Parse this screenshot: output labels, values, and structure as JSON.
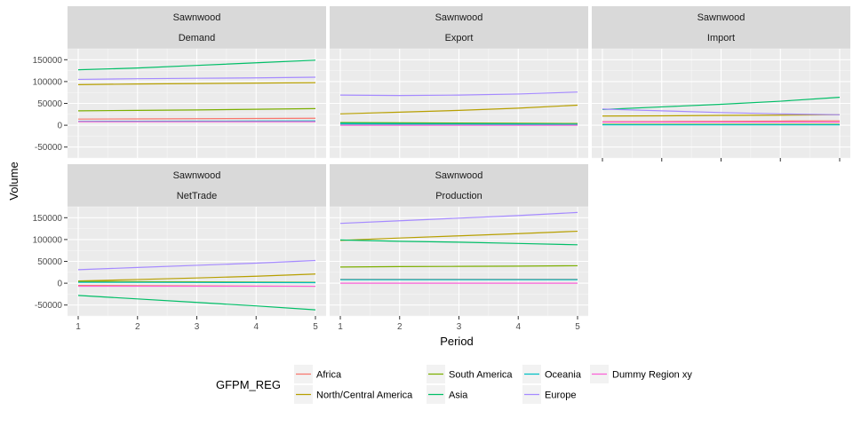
{
  "chart_data": {
    "type": "line",
    "facet_layout": "2 rows x 3 columns, free x labels on bottom panels",
    "xlabel": "Period",
    "ylabel": "Volume",
    "x": [
      1,
      2,
      3,
      4,
      5
    ],
    "x_ticks": [
      "1",
      "2",
      "3",
      "4",
      "5"
    ],
    "ylim": [
      -75000,
      175000
    ],
    "y_ticks": [
      "-50000",
      "0",
      "50000",
      "100000",
      "150000"
    ],
    "y_tick_values": [
      -50000,
      0,
      50000,
      100000,
      150000
    ],
    "grid": true,
    "legend_position": "bottom",
    "legend_title": "GFPM_REG",
    "legend_items": [
      {
        "name": "Africa",
        "color": "#F8766D"
      },
      {
        "name": "North/Central America",
        "color": "#B79F00"
      },
      {
        "name": "South America",
        "color": "#7CAE00"
      },
      {
        "name": "Asia",
        "color": "#00BE67"
      },
      {
        "name": "Oceania",
        "color": "#00BFC4"
      },
      {
        "name": "Europe",
        "color": "#A58AFF"
      },
      {
        "name": "Dummy Region xy",
        "color": "#FB61D7"
      }
    ],
    "panels": [
      {
        "strip_top": "Sawnwood",
        "strip_bottom": "Demand",
        "series": [
          {
            "name": "Africa",
            "values": [
              14000,
              14500,
              15000,
              15500,
              16000
            ]
          },
          {
            "name": "North/Central America",
            "values": [
              93000,
              94500,
              95500,
              96500,
              97500
            ]
          },
          {
            "name": "South America",
            "values": [
              33000,
              34000,
              35000,
              36500,
              38000
            ]
          },
          {
            "name": "Asia",
            "values": [
              127000,
              131000,
              137000,
              143000,
              149000
            ]
          },
          {
            "name": "Oceania",
            "values": [
              9000,
              9200,
              9400,
              9600,
              9800
            ]
          },
          {
            "name": "Europe",
            "values": [
              105000,
              106500,
              107500,
              108500,
              110000
            ]
          },
          {
            "name": "Dummy Region xy",
            "values": [
              8000,
              8000,
              8000,
              8000,
              8000
            ]
          }
        ]
      },
      {
        "strip_top": "Sawnwood",
        "strip_bottom": "Export",
        "series": [
          {
            "name": "Africa",
            "values": [
              3000,
              3000,
              3000,
              3000,
              3000
            ]
          },
          {
            "name": "North/Central America",
            "values": [
              26000,
              30000,
              34000,
              39000,
              46000
            ]
          },
          {
            "name": "South America",
            "values": [
              6000,
              5500,
              5000,
              4500,
              4000
            ]
          },
          {
            "name": "Asia",
            "values": [
              5000,
              4000,
              3500,
              3000,
              2000
            ]
          },
          {
            "name": "Oceania",
            "values": [
              3000,
              2800,
              2600,
              2400,
              2200
            ]
          },
          {
            "name": "Europe",
            "values": [
              69000,
              68000,
              69000,
              71500,
              76000
            ]
          },
          {
            "name": "Dummy Region xy",
            "values": [
              0,
              0,
              0,
              0,
              0
            ]
          }
        ]
      },
      {
        "strip_top": "Sawnwood",
        "strip_bottom": "Import",
        "series": [
          {
            "name": "Africa",
            "values": [
              8000,
              8500,
              9000,
              9500,
              10000
            ]
          },
          {
            "name": "North/Central America",
            "values": [
              21000,
              21500,
              22500,
              23000,
              24000
            ]
          },
          {
            "name": "South America",
            "values": [
              2000,
              2000,
              2000,
              2000,
              2000
            ]
          },
          {
            "name": "Asia",
            "values": [
              36000,
              42000,
              48000,
              55000,
              64000
            ]
          },
          {
            "name": "Oceania",
            "values": [
              1000,
              1000,
              1000,
              1000,
              1000
            ]
          },
          {
            "name": "Europe",
            "values": [
              37000,
              33000,
              29000,
              26000,
              24000
            ]
          },
          {
            "name": "Dummy Region xy",
            "values": [
              7000,
              7000,
              7000,
              7000,
              7000
            ]
          }
        ]
      },
      {
        "strip_top": "Sawnwood",
        "strip_bottom": "NetTrade",
        "series": [
          {
            "name": "Africa",
            "values": [
              -5000,
              -5500,
              -6000,
              -6500,
              -7000
            ]
          },
          {
            "name": "North/Central America",
            "values": [
              5000,
              8500,
              12000,
              16000,
              21000
            ]
          },
          {
            "name": "South America",
            "values": [
              4000,
              3500,
              3000,
              2500,
              2000
            ]
          },
          {
            "name": "Asia",
            "values": [
              -28000,
              -36000,
              -44000,
              -52000,
              -61000
            ]
          },
          {
            "name": "Oceania",
            "values": [
              2000,
              1800,
              1600,
              1400,
              1200
            ]
          },
          {
            "name": "Europe",
            "values": [
              31000,
              36000,
              41000,
              46000,
              52000
            ]
          },
          {
            "name": "Dummy Region xy",
            "values": [
              -7000,
              -7000,
              -7000,
              -7000,
              -7000
            ]
          }
        ]
      },
      {
        "strip_top": "Sawnwood",
        "strip_bottom": "Production",
        "series": [
          {
            "name": "Africa",
            "values": [
              9000,
              9000,
              9000,
              9000,
              9000
            ]
          },
          {
            "name": "North/Central America",
            "values": [
              98000,
              103500,
              108500,
              113500,
              119000
            ]
          },
          {
            "name": "South America",
            "values": [
              37000,
              38000,
              38500,
              39000,
              40000
            ]
          },
          {
            "name": "Asia",
            "values": [
              99000,
              96000,
              94000,
              91000,
              88000
            ]
          },
          {
            "name": "Oceania",
            "values": [
              8000,
              8000,
              8000,
              8000,
              8000
            ]
          },
          {
            "name": "Europe",
            "values": [
              137000,
              143000,
              149000,
              155000,
              162000
            ]
          },
          {
            "name": "Dummy Region xy",
            "values": [
              0,
              0,
              0,
              0,
              0
            ]
          }
        ]
      }
    ]
  }
}
